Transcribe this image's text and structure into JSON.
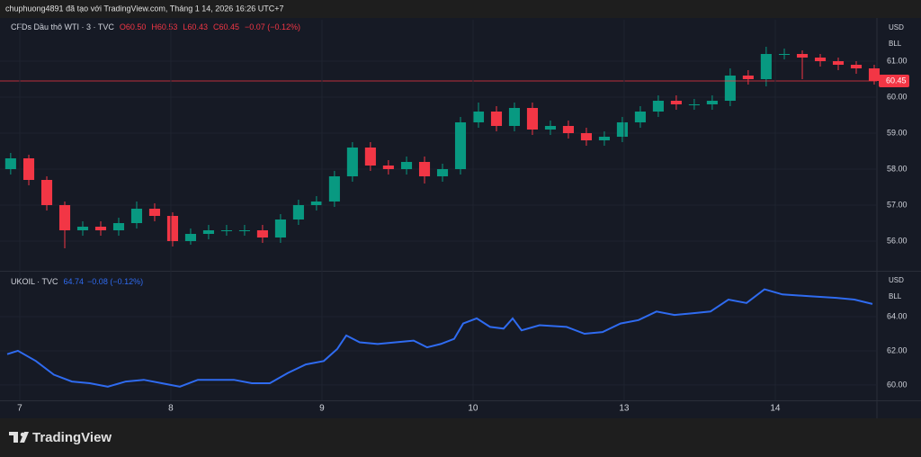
{
  "header": "chuphuong4891 đã tạo với TradingView.com, Tháng 1 14, 2026 16:26 UTC+7",
  "footer": {
    "logo": "TradingView"
  },
  "chart_data": [
    {
      "type": "candlestick",
      "legend": "CFDs Dầu thô WTI · 3 · TVC",
      "ohlc_labels": [
        "O60.50",
        "H60.53",
        "L60.43",
        "C60.45"
      ],
      "change_label": "−0.07 (−0.12%)",
      "currency": [
        "USD",
        "BLL"
      ],
      "last_price": 60.45,
      "up_color": "#089981",
      "down_color": "#f23645",
      "xlim": [
        -0.083,
        5.667
      ],
      "ylim": [
        55.2,
        62.15
      ],
      "yticks": [
        {
          "value": 56,
          "label": "56.00"
        },
        {
          "value": 57,
          "label": "57.00"
        },
        {
          "value": 58,
          "label": "58.00"
        },
        {
          "value": 59,
          "label": "59.00"
        },
        {
          "value": 60,
          "label": "60.00"
        },
        {
          "value": 61,
          "label": "61.00"
        }
      ],
      "x": [
        -0.06,
        0.06,
        0.179,
        0.298,
        0.417,
        0.536,
        0.655,
        0.774,
        0.893,
        1.012,
        1.131,
        1.25,
        1.369,
        1.488,
        1.607,
        1.726,
        1.845,
        1.964,
        2.083,
        2.202,
        2.321,
        2.44,
        2.56,
        2.679,
        2.798,
        2.917,
        3.036,
        3.155,
        3.274,
        3.393,
        3.512,
        3.631,
        3.75,
        3.869,
        3.988,
        4.107,
        4.226,
        4.345,
        4.464,
        4.583,
        4.702,
        4.821,
        4.94,
        5.06,
        5.179,
        5.298,
        5.417,
        5.536,
        5.655
      ],
      "open": [
        58.0,
        58.3,
        57.7,
        57.0,
        56.3,
        56.4,
        56.3,
        56.5,
        56.9,
        56.7,
        56.0,
        56.2,
        56.3,
        56.3,
        56.3,
        56.1,
        56.6,
        57.0,
        57.1,
        57.8,
        58.6,
        58.1,
        58.0,
        58.2,
        57.8,
        58.0,
        59.3,
        59.6,
        59.2,
        59.7,
        59.1,
        59.2,
        59.0,
        58.8,
        58.9,
        59.3,
        59.6,
        59.9,
        59.8,
        59.8,
        59.9,
        60.6,
        60.5,
        61.2,
        61.2,
        61.1,
        61.0,
        60.9,
        60.8
      ],
      "high": [
        58.45,
        58.4,
        57.8,
        57.1,
        56.55,
        56.55,
        56.65,
        57.1,
        57.05,
        56.8,
        56.35,
        56.45,
        56.45,
        56.45,
        56.45,
        56.75,
        57.15,
        57.25,
        57.95,
        58.75,
        58.75,
        58.25,
        58.35,
        58.35,
        58.15,
        59.45,
        59.85,
        59.75,
        59.85,
        59.85,
        59.35,
        59.35,
        59.15,
        59.05,
        59.45,
        59.75,
        60.05,
        60.05,
        59.95,
        60.05,
        60.8,
        60.75,
        61.4,
        61.35,
        61.3,
        61.2,
        61.1,
        61.0,
        60.9
      ],
      "low": [
        57.85,
        57.55,
        56.85,
        55.8,
        56.15,
        56.15,
        56.15,
        56.35,
        56.55,
        55.85,
        55.9,
        56.05,
        56.15,
        56.15,
        55.95,
        55.95,
        56.45,
        56.85,
        56.95,
        57.65,
        57.95,
        57.85,
        57.85,
        57.6,
        57.65,
        57.85,
        59.15,
        59.05,
        59.05,
        58.95,
        58.95,
        58.85,
        58.65,
        58.65,
        58.75,
        59.15,
        59.45,
        59.65,
        59.65,
        59.65,
        59.75,
        60.35,
        60.3,
        61.05,
        60.5,
        60.85,
        60.75,
        60.65,
        60.35
      ],
      "close": [
        58.3,
        57.7,
        57.0,
        56.3,
        56.4,
        56.3,
        56.5,
        56.9,
        56.7,
        56.0,
        56.2,
        56.3,
        56.3,
        56.3,
        56.1,
        56.6,
        57.0,
        57.1,
        57.8,
        58.6,
        58.1,
        58.0,
        58.2,
        57.8,
        58.0,
        59.3,
        59.6,
        59.2,
        59.7,
        59.1,
        59.2,
        59.0,
        58.8,
        58.9,
        59.3,
        59.6,
        59.9,
        59.8,
        59.8,
        59.9,
        60.6,
        60.5,
        61.2,
        61.2,
        61.1,
        61.0,
        60.9,
        60.8,
        60.45
      ]
    },
    {
      "type": "line",
      "legend": "UKOIL · TVC",
      "last_value": 64.74,
      "change_label": "−0.08 (−0.12%)",
      "currency": [
        "USD",
        "BLL"
      ],
      "color": "#2f6bf0",
      "xlim": [
        -0.083,
        5.667
      ],
      "ylim": [
        59.1,
        66.58
      ],
      "yticks": [
        {
          "value": 60,
          "label": "60.00"
        },
        {
          "value": 62,
          "label": "62.00"
        },
        {
          "value": 64,
          "label": "64.00"
        }
      ],
      "xticks": [
        {
          "value": 0,
          "label": "7"
        },
        {
          "value": 1,
          "label": "8"
        },
        {
          "value": 2,
          "label": "9"
        },
        {
          "value": 3,
          "label": "10"
        },
        {
          "value": 4,
          "label": "13"
        },
        {
          "value": 5,
          "label": "14"
        }
      ],
      "x": [
        -0.083,
        -0.012,
        0.107,
        0.226,
        0.345,
        0.464,
        0.583,
        0.702,
        0.821,
        0.94,
        1.06,
        1.179,
        1.298,
        1.417,
        1.536,
        1.655,
        1.774,
        1.893,
        2.012,
        2.101,
        2.161,
        2.25,
        2.369,
        2.488,
        2.607,
        2.696,
        2.786,
        2.875,
        2.935,
        3.024,
        3.113,
        3.202,
        3.262,
        3.321,
        3.44,
        3.619,
        3.738,
        3.857,
        3.976,
        4.095,
        4.214,
        4.333,
        4.452,
        4.571,
        4.69,
        4.81,
        4.929,
        5.048,
        5.226,
        5.405,
        5.524,
        5.643
      ],
      "values": [
        61.8,
        62.0,
        61.4,
        60.6,
        60.2,
        60.1,
        59.9,
        60.2,
        60.3,
        60.1,
        59.9,
        60.3,
        60.3,
        60.3,
        60.1,
        60.1,
        60.7,
        61.2,
        61.4,
        62.1,
        62.9,
        62.5,
        62.4,
        62.5,
        62.6,
        62.2,
        62.4,
        62.7,
        63.6,
        63.9,
        63.4,
        63.3,
        63.9,
        63.2,
        63.5,
        63.4,
        63.0,
        63.1,
        63.6,
        63.8,
        64.3,
        64.1,
        64.2,
        64.3,
        65.0,
        64.8,
        65.6,
        65.3,
        65.2,
        65.1,
        65.0,
        64.74
      ]
    }
  ]
}
